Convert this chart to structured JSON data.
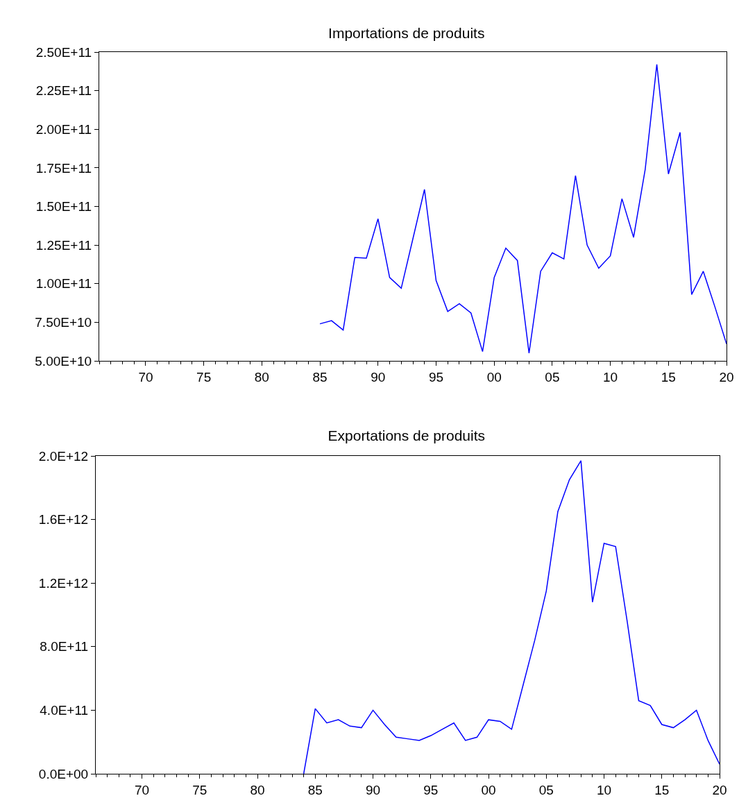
{
  "chart_data": [
    {
      "type": "line",
      "title": "Importations de produits",
      "x": [
        1985,
        1986,
        1987,
        1988,
        1989,
        1990,
        1991,
        1992,
        1993,
        1994,
        1995,
        1996,
        1997,
        1998,
        1999,
        2000,
        2001,
        2002,
        2003,
        2004,
        2005,
        2006,
        2007,
        2008,
        2009,
        2010,
        2011,
        2012,
        2013,
        2014,
        2015,
        2016,
        2017,
        2018,
        2019,
        2020
      ],
      "series": [
        {
          "color": "#0000ff",
          "values": [
            74000000000.0,
            76000000000.0,
            70000000000.0,
            117000000000.0,
            116500000000.0,
            142000000000.0,
            104000000000.0,
            97000000000.0,
            129000000000.0,
            161000000000.0,
            102000000000.0,
            82000000000.0,
            87000000000.0,
            81000000000.0,
            56000000000.0,
            104000000000.0,
            123000000000.0,
            115000000000.0,
            55000000000.0,
            108000000000.0,
            120000000000.0,
            116000000000.0,
            170000000000.0,
            125000000000.0,
            110000000000.0,
            118000000000.0,
            155000000000.0,
            130000000000.0,
            174000000000.0,
            242000000000.0,
            171000000000.0,
            198000000000.0,
            93000000000.0,
            108000000000.0,
            85000000000.0,
            61000000000.0
          ]
        }
      ],
      "xlim": [
        1966,
        2020
      ],
      "xticks": [
        {
          "value": 1970,
          "label": "70"
        },
        {
          "value": 1975,
          "label": "75"
        },
        {
          "value": 1980,
          "label": "80"
        },
        {
          "value": 1985,
          "label": "85"
        },
        {
          "value": 1990,
          "label": "90"
        },
        {
          "value": 1995,
          "label": "95"
        },
        {
          "value": 2000,
          "label": "00"
        },
        {
          "value": 2005,
          "label": "05"
        },
        {
          "value": 2010,
          "label": "10"
        },
        {
          "value": 2015,
          "label": "15"
        },
        {
          "value": 2020,
          "label": "20"
        }
      ],
      "ylim": [
        50000000000.0,
        250000000000.0
      ],
      "yticks": [
        {
          "value": 50000000000.0,
          "label": "5.00E+10"
        },
        {
          "value": 75000000000.0,
          "label": "7.50E+10"
        },
        {
          "value": 100000000000.0,
          "label": "1.00E+11"
        },
        {
          "value": 125000000000.0,
          "label": "1.25E+11"
        },
        {
          "value": 150000000000.0,
          "label": "1.50E+11"
        },
        {
          "value": 175000000000.0,
          "label": "1.75E+11"
        },
        {
          "value": 200000000000.0,
          "label": "2.00E+11"
        },
        {
          "value": 225000000000.0,
          "label": "2.25E+11"
        },
        {
          "value": 250000000000.0,
          "label": "2.50E+11"
        }
      ]
    },
    {
      "type": "line",
      "title": "Exportations de produits",
      "x": [
        1984,
        1985,
        1986,
        1987,
        1988,
        1989,
        1990,
        1991,
        1992,
        1993,
        1994,
        1995,
        1996,
        1997,
        1998,
        1999,
        2000,
        2001,
        2002,
        2003,
        2004,
        2005,
        2006,
        2007,
        2008,
        2009,
        2010,
        2011,
        2012,
        2013,
        2014,
        2015,
        2016,
        2017,
        2018,
        2019,
        2020
      ],
      "series": [
        {
          "color": "#0000ff",
          "values": [
            0,
            410000000000.0,
            320000000000.0,
            340000000000.0,
            300000000000.0,
            290000000000.0,
            400000000000.0,
            310000000000.0,
            230000000000.0,
            220000000000.0,
            210000000000.0,
            240000000000.0,
            280000000000.0,
            320000000000.0,
            210000000000.0,
            230000000000.0,
            340000000000.0,
            330000000000.0,
            280000000000.0,
            560000000000.0,
            840000000000.0,
            1150000000000.0,
            1650000000000.0,
            1850000000000.0,
            1970000000000.0,
            1080000000000.0,
            1450000000000.0,
            1430000000000.0,
            960000000000.0,
            460000000000.0,
            430000000000.0,
            310000000000.0,
            290000000000.0,
            340000000000.0,
            400000000000.0,
            210000000000.0,
            60000000000.0
          ]
        }
      ],
      "xlim": [
        1966,
        2020
      ],
      "xticks": [
        {
          "value": 1970,
          "label": "70"
        },
        {
          "value": 1975,
          "label": "75"
        },
        {
          "value": 1980,
          "label": "80"
        },
        {
          "value": 1985,
          "label": "85"
        },
        {
          "value": 1990,
          "label": "90"
        },
        {
          "value": 1995,
          "label": "95"
        },
        {
          "value": 2000,
          "label": "00"
        },
        {
          "value": 2005,
          "label": "05"
        },
        {
          "value": 2010,
          "label": "10"
        },
        {
          "value": 2015,
          "label": "15"
        },
        {
          "value": 2020,
          "label": "20"
        }
      ],
      "ylim": [
        0,
        2000000000000.0
      ],
      "yticks": [
        {
          "value": 0,
          "label": "0.0E+00"
        },
        {
          "value": 400000000000.0,
          "label": "4.0E+11"
        },
        {
          "value": 800000000000.0,
          "label": "8.0E+11"
        },
        {
          "value": 1200000000000.0,
          "label": "1.2E+12"
        },
        {
          "value": 1600000000000.0,
          "label": "1.6E+12"
        },
        {
          "value": 2000000000000.0,
          "label": "2.0E+12"
        }
      ]
    }
  ]
}
